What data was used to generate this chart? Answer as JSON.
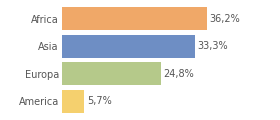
{
  "categories": [
    "Africa",
    "Asia",
    "Europa",
    "America"
  ],
  "values": [
    36.2,
    33.3,
    24.8,
    5.7
  ],
  "labels": [
    "36,2%",
    "33,3%",
    "24,8%",
    "5,7%"
  ],
  "bar_colors": [
    "#f0a868",
    "#6e8ec4",
    "#b5c98a",
    "#f5d06e"
  ],
  "background_color": "#ffffff",
  "xlim": [
    0,
    46
  ],
  "bar_height": 0.82,
  "label_fontsize": 7,
  "tick_fontsize": 7
}
